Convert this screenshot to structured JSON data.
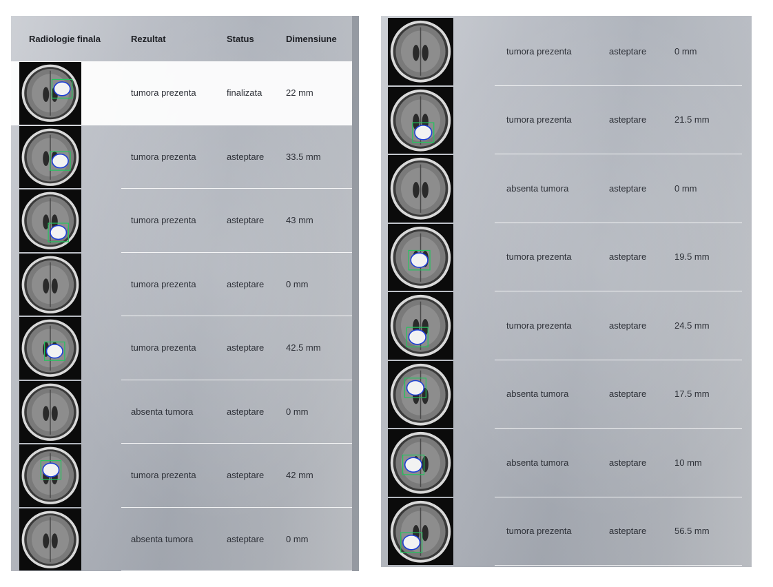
{
  "left_table": {
    "headers": {
      "radiology": "Radiologie finala",
      "result": "Rezultat",
      "status": "Status",
      "size": "Dimensiune"
    },
    "rows": [
      {
        "result": "tumora prezenta",
        "status": "finalizata",
        "size": "22 mm",
        "selected": true,
        "tumor": true
      },
      {
        "result": "tumora prezenta",
        "status": "asteptare",
        "size": "33.5 mm",
        "tumor": true
      },
      {
        "result": "tumora prezenta",
        "status": "asteptare",
        "size": "43 mm",
        "tumor": true
      },
      {
        "result": "tumora prezenta",
        "status": "asteptare",
        "size": "0 mm",
        "tumor": false
      },
      {
        "result": "tumora prezenta",
        "status": "asteptare",
        "size": "42.5 mm",
        "tumor": true
      },
      {
        "result": "absenta tumora",
        "status": "asteptare",
        "size": "0 mm",
        "tumor": false
      },
      {
        "result": "tumora prezenta",
        "status": "asteptare",
        "size": "42 mm",
        "tumor": true
      },
      {
        "result": "absenta tumora",
        "status": "asteptare",
        "size": "0 mm",
        "tumor": false
      }
    ]
  },
  "right_table": {
    "rows": [
      {
        "result": "tumora prezenta",
        "status": "asteptare",
        "size": "0 mm",
        "tumor": false
      },
      {
        "result": "tumora prezenta",
        "status": "asteptare",
        "size": "21.5 mm",
        "tumor": true
      },
      {
        "result": "absenta tumora",
        "status": "asteptare",
        "size": "0 mm",
        "tumor": false
      },
      {
        "result": "tumora prezenta",
        "status": "asteptare",
        "size": "19.5 mm",
        "tumor": true
      },
      {
        "result": "tumora prezenta",
        "status": "asteptare",
        "size": "24.5 mm",
        "tumor": true
      },
      {
        "result": "absenta tumora",
        "status": "asteptare",
        "size": "17.5 mm",
        "tumor": true
      },
      {
        "result": "absenta tumora",
        "status": "asteptare",
        "size": "10 mm",
        "tumor": true
      },
      {
        "result": "tumora prezenta",
        "status": "asteptare",
        "size": "56.5 mm",
        "tumor": true
      }
    ]
  },
  "colors": {
    "tumor_box": "#22c55e",
    "tumor_outline": "#1d3fd6",
    "selected_row": "#ffffff"
  }
}
